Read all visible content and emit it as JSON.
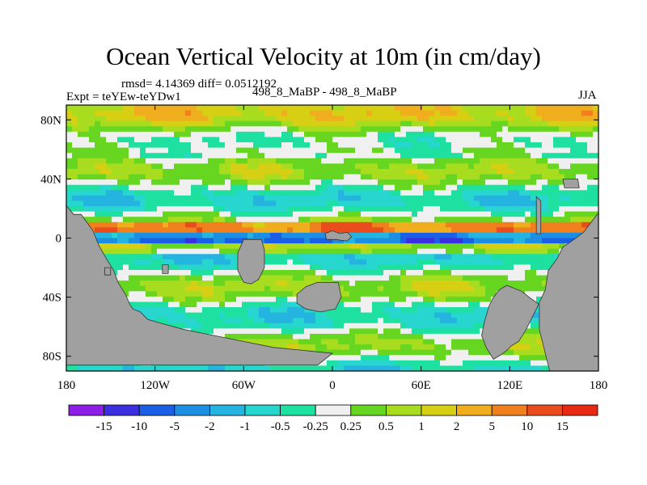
{
  "chart_data": {
    "type": "heatmap",
    "title": "Ocean Vertical Velocity at 10m (in cm/day)",
    "stats_text": "rmsd= 4.14369 diff= 0.0512192",
    "experiment_label": "Expt = teYEw-teYDw1",
    "comparison_label": "498_8_MaBP - 498_8_MaBP",
    "season": "JJA",
    "x_axis": {
      "range": [
        -180,
        180
      ],
      "tick_values": [
        -180,
        -120,
        -60,
        0,
        60,
        120,
        180
      ],
      "tick_labels": [
        "180",
        "120W",
        "60W",
        "0",
        "60E",
        "120E",
        "180"
      ]
    },
    "y_axis": {
      "range": [
        -90,
        90
      ],
      "tick_values": [
        80,
        40,
        0,
        -40,
        -80
      ],
      "tick_labels": [
        "80N",
        "40N",
        "0",
        "40S",
        "80S"
      ]
    },
    "colorbar": {
      "colors": [
        "#8d1ee6",
        "#3c2fe0",
        "#1a5fe6",
        "#1c8fe2",
        "#25b4e0",
        "#26d6cf",
        "#1ee0a0",
        "#f0f0f0",
        "#66d620",
        "#a8dc1e",
        "#d6cf14",
        "#f0ae1e",
        "#f07f1e",
        "#eb4c1e",
        "#e62a14"
      ],
      "labels": [
        "-15",
        "-10",
        "-5",
        "-2",
        "-1",
        "-0.5",
        "-0.25",
        "0.25",
        "0.5",
        "1",
        "2",
        "5",
        "10",
        "15"
      ]
    },
    "land_color": "#a0a0a0"
  }
}
